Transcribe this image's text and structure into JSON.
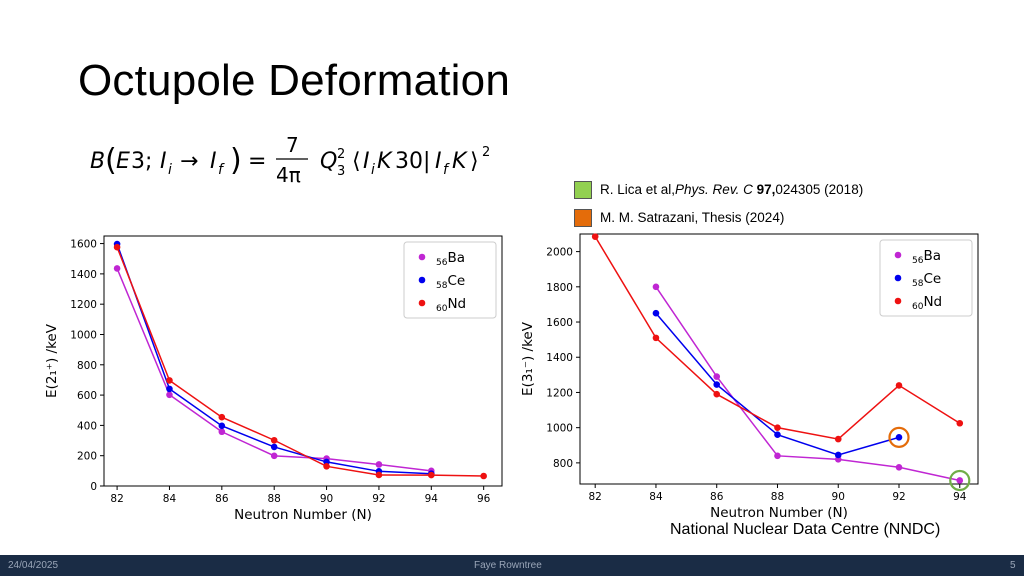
{
  "slide": {
    "title": "Octupole Deformation",
    "references": [
      {
        "color": "#92d050",
        "author": "R. Lica et al, ",
        "journal": "Phys. Rev. C",
        "volume": "97,",
        "rest": " 024305 (2018)"
      },
      {
        "color": "#e46c0a",
        "author": "M. M. Satrazani, Thesis (2024)",
        "journal": "",
        "volume": "",
        "rest": ""
      }
    ],
    "source": "National Nuclear Data Centre (NNDC)",
    "footer": {
      "date": "24/04/2025",
      "author": "Faye Rowntree",
      "page": "5"
    }
  },
  "chart_data": [
    {
      "type": "line",
      "xlabel": "Neutron Number (N)",
      "ylabel": "E(2₁⁺) /keV",
      "ylim": [
        0,
        1650
      ],
      "xlim": [
        81.5,
        96.7
      ],
      "xticks": [
        82,
        84,
        86,
        88,
        90,
        92,
        94,
        96
      ],
      "yticks": [
        0,
        200,
        400,
        600,
        800,
        1000,
        1200,
        1400,
        1600
      ],
      "grid": false,
      "legend": "top-right",
      "series": [
        {
          "name": "56Ba",
          "color": "#c026d3",
          "x": [
            82,
            84,
            86,
            88,
            90,
            92,
            94
          ],
          "y": [
            1436,
            602,
            358,
            199,
            181,
            142,
            100
          ]
        },
        {
          "name": "58Ce",
          "color": "#0000ee",
          "x": [
            82,
            84,
            86,
            88,
            90,
            92,
            94
          ],
          "y": [
            1597,
            641,
            397,
            258,
            159,
            97,
            81
          ]
        },
        {
          "name": "60Nd",
          "color": "#ee1111",
          "x": [
            82,
            84,
            86,
            88,
            90,
            92,
            94,
            96
          ],
          "y": [
            1576,
            697,
            454,
            302,
            130,
            73,
            72,
            66
          ]
        }
      ]
    },
    {
      "type": "line",
      "xlabel": "Neutron Number (N)",
      "ylabel": "E(3₁⁻) /keV",
      "ylim": [
        680,
        2100
      ],
      "xlim": [
        81.5,
        94.6
      ],
      "xticks": [
        82,
        84,
        86,
        88,
        90,
        92,
        94
      ],
      "yticks": [
        800,
        1000,
        1200,
        1400,
        1600,
        1800,
        2000
      ],
      "grid": false,
      "legend": "top-right",
      "series": [
        {
          "name": "56Ba",
          "color": "#c026d3",
          "x": [
            84,
            86,
            88,
            90,
            92,
            94
          ],
          "y": [
            1800,
            1290,
            840,
            820,
            775,
            700
          ]
        },
        {
          "name": "58Ce",
          "color": "#0000ee",
          "x": [
            84,
            86,
            88,
            90,
            92
          ],
          "y": [
            1650,
            1245,
            960,
            845,
            945
          ]
        },
        {
          "name": "60Nd",
          "color": "#ee1111",
          "x": [
            82,
            84,
            86,
            88,
            90,
            92,
            94
          ],
          "y": [
            2085,
            1510,
            1190,
            1000,
            935,
            1240,
            1025
          ]
        }
      ],
      "annotations": [
        {
          "type": "circle",
          "x": 92,
          "y": 945,
          "color": "#e46c0a"
        },
        {
          "type": "circle",
          "x": 94,
          "y": 700,
          "color": "#70ad47"
        }
      ]
    }
  ]
}
